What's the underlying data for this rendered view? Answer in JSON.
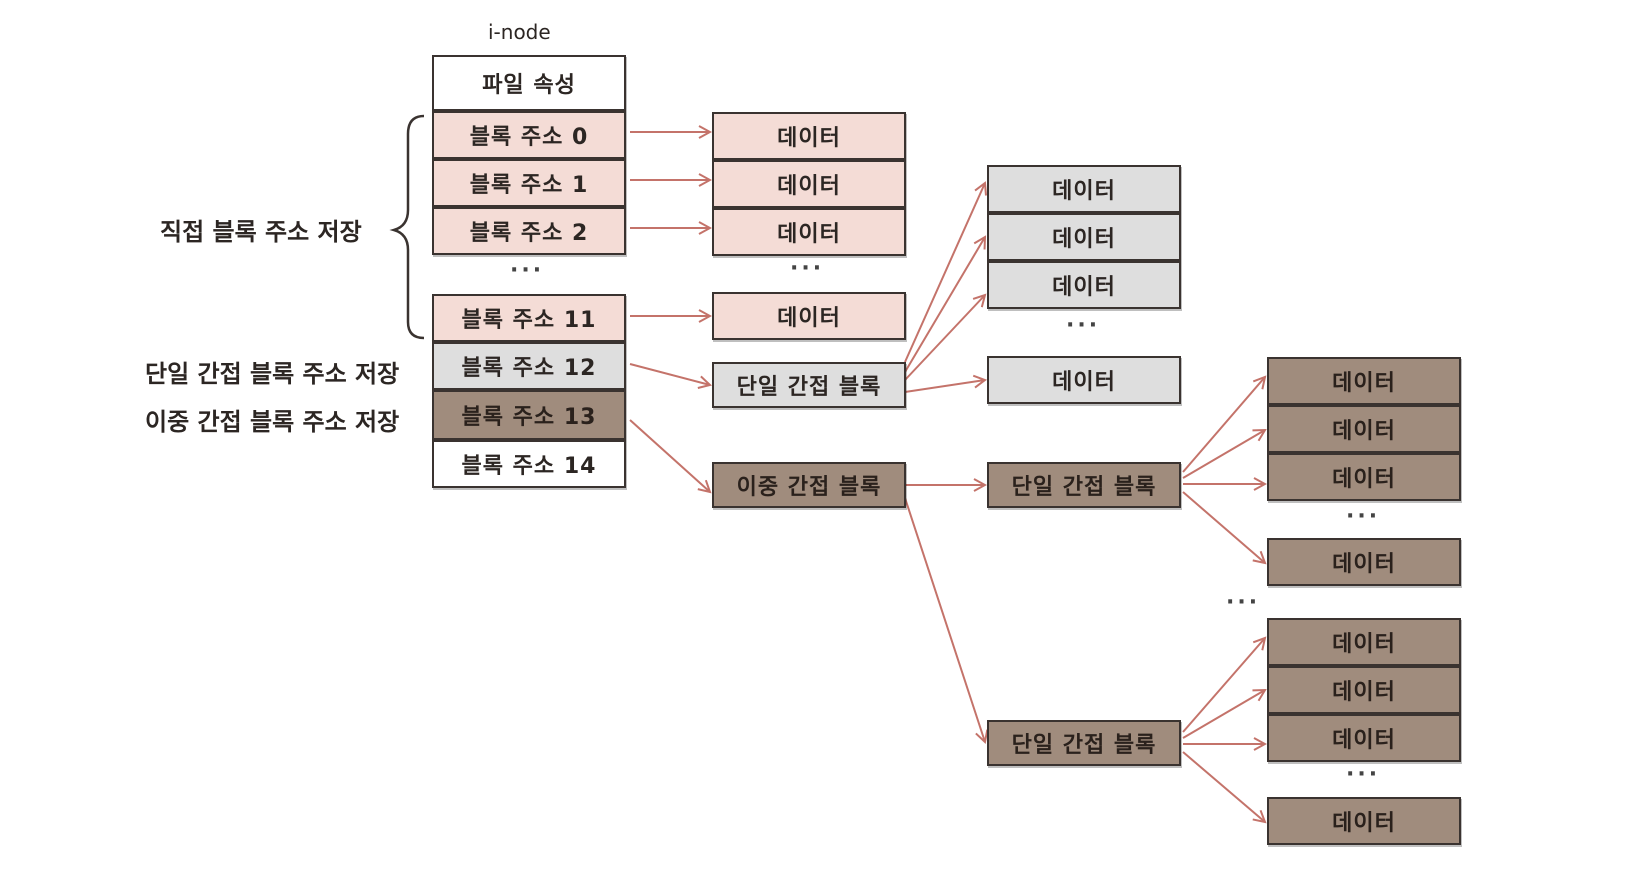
{
  "inode": {
    "title": "i-node",
    "attributes": "파일 속성",
    "addresses": [
      "블록 주소 0",
      "블록 주소 1",
      "블록 주소 2",
      "블록 주소 11",
      "블록 주소 12",
      "블록 주소 13",
      "블록 주소 14"
    ]
  },
  "labels": {
    "direct": "직접 블록 주소 저장",
    "single_indirect": "단일 간접 블록 주소 저장",
    "double_indirect": "이중 간접 블록 주소 저장"
  },
  "blocks": {
    "data": "데이터",
    "single_indirect": "단일 간접 블록",
    "double_indirect": "이중 간접 블록"
  },
  "ellipsis": "···",
  "colors": {
    "direct": "#f4dcd6",
    "single_indirect": "#dedede",
    "double_indirect": "#a08c7d",
    "arrow": "#c4736a"
  }
}
